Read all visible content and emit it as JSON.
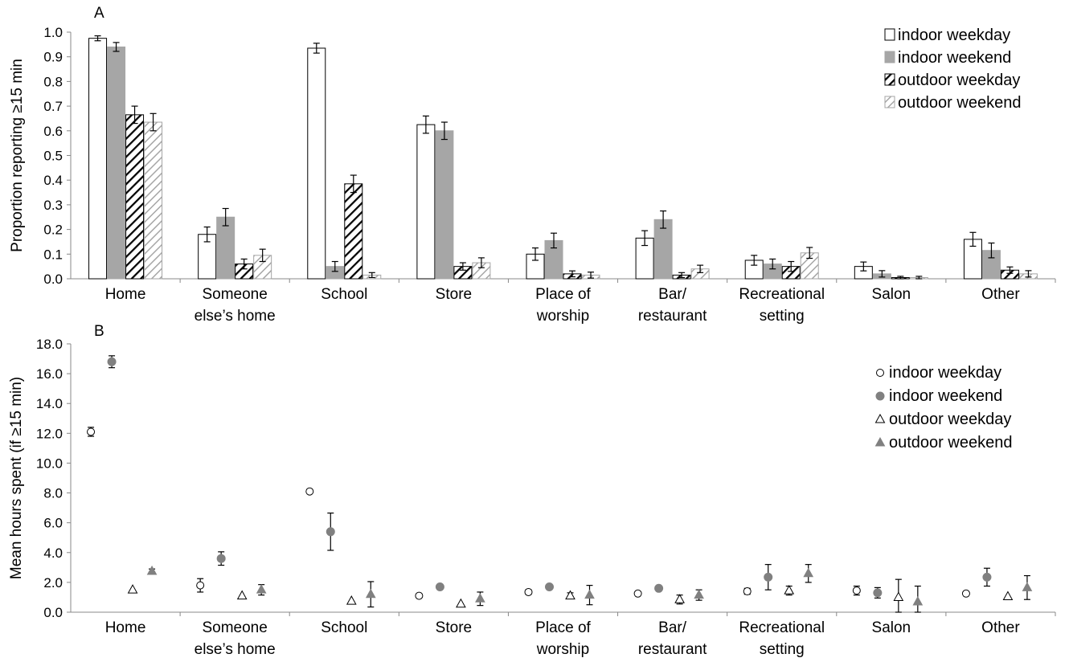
{
  "chart_data": [
    {
      "panel_label": "A",
      "type": "bar",
      "ylabel": "Proportion reporting ≥15 min",
      "ylim": [
        0,
        1
      ],
      "yticks": [
        "0.0",
        "0.1",
        "0.2",
        "0.3",
        "0.4",
        "0.5",
        "0.6",
        "0.7",
        "0.8",
        "0.9",
        "1.0"
      ],
      "grid": false,
      "legend_position": "top-right",
      "categories": [
        [
          "Home"
        ],
        [
          "Someone",
          "else’s home"
        ],
        [
          "School"
        ],
        [
          "Store"
        ],
        [
          "Place of",
          "worship"
        ],
        [
          "Bar/",
          "restaurant"
        ],
        [
          "Recreational",
          "setting"
        ],
        [
          "Salon"
        ],
        [
          "Other"
        ]
      ],
      "series": [
        {
          "name": "indoor weekday",
          "fill": "#ffffff",
          "values": [
            0.975,
            0.18,
            0.935,
            0.625,
            0.1,
            0.165,
            0.075,
            0.05,
            0.16
          ],
          "errors": [
            0.01,
            0.03,
            0.02,
            0.035,
            0.025,
            0.03,
            0.02,
            0.018,
            0.028
          ]
        },
        {
          "name": "indoor weekend",
          "fill": "#a6a6a6",
          "values": [
            0.94,
            0.25,
            0.05,
            0.6,
            0.155,
            0.24,
            0.06,
            0.02,
            0.115
          ],
          "errors": [
            0.018,
            0.035,
            0.02,
            0.035,
            0.03,
            0.035,
            0.02,
            0.013,
            0.03
          ]
        },
        {
          "name": "outdoor weekday",
          "fill": "hatch-dark",
          "values": [
            0.665,
            0.06,
            0.385,
            0.05,
            0.02,
            0.015,
            0.05,
            0.005,
            0.035
          ],
          "errors": [
            0.035,
            0.02,
            0.035,
            0.015,
            0.012,
            0.01,
            0.02,
            0.005,
            0.013
          ]
        },
        {
          "name": "outdoor weekend",
          "fill": "hatch-light",
          "values": [
            0.635,
            0.095,
            0.015,
            0.065,
            0.015,
            0.04,
            0.105,
            0.005,
            0.02
          ],
          "errors": [
            0.035,
            0.025,
            0.01,
            0.02,
            0.012,
            0.015,
            0.022,
            0.005,
            0.013
          ]
        }
      ]
    },
    {
      "panel_label": "B",
      "type": "scatter",
      "ylabel": "Mean hours spent (if ≥15 min)",
      "ylim": [
        0,
        18
      ],
      "yticks": [
        "0.0",
        "2.0",
        "4.0",
        "6.0",
        "8.0",
        "10.0",
        "12.0",
        "14.0",
        "16.0",
        "18.0"
      ],
      "grid": false,
      "legend_position": "top-right",
      "categories": [
        [
          "Home"
        ],
        [
          "Someone",
          "else’s home"
        ],
        [
          "School"
        ],
        [
          "Store"
        ],
        [
          "Place of",
          "worship"
        ],
        [
          "Bar/",
          "restaurant"
        ],
        [
          "Recreational",
          "setting"
        ],
        [
          "Salon"
        ],
        [
          "Other"
        ]
      ],
      "series": [
        {
          "name": "indoor weekday",
          "marker": "circle-open",
          "values": [
            12.1,
            1.8,
            8.1,
            1.1,
            1.35,
            1.25,
            1.4,
            1.45,
            1.25
          ],
          "errors": [
            0.3,
            0.45,
            0.0,
            0.0,
            0.15,
            0.1,
            0.2,
            0.3,
            0.0
          ]
        },
        {
          "name": "indoor weekend",
          "marker": "circle-filled",
          "values": [
            16.8,
            3.6,
            5.4,
            1.7,
            1.7,
            1.6,
            2.35,
            1.3,
            2.35
          ],
          "errors": [
            0.4,
            0.45,
            1.25,
            0.1,
            0.15,
            0.15,
            0.85,
            0.35,
            0.6
          ]
        },
        {
          "name": "outdoor weekday",
          "marker": "triangle-open",
          "values": [
            1.5,
            1.1,
            0.75,
            0.55,
            1.1,
            0.85,
            1.45,
            1.0,
            1.05
          ],
          "errors": [
            0.0,
            0.0,
            0.0,
            0.0,
            0.2,
            0.3,
            0.3,
            1.2,
            0.0
          ]
        },
        {
          "name": "outdoor weekend",
          "marker": "triangle-filled",
          "values": [
            2.75,
            1.5,
            1.2,
            0.9,
            1.15,
            1.15,
            2.6,
            0.7,
            1.65
          ],
          "errors": [
            0.15,
            0.35,
            0.85,
            0.45,
            0.65,
            0.35,
            0.6,
            1.05,
            0.8
          ]
        }
      ]
    }
  ]
}
